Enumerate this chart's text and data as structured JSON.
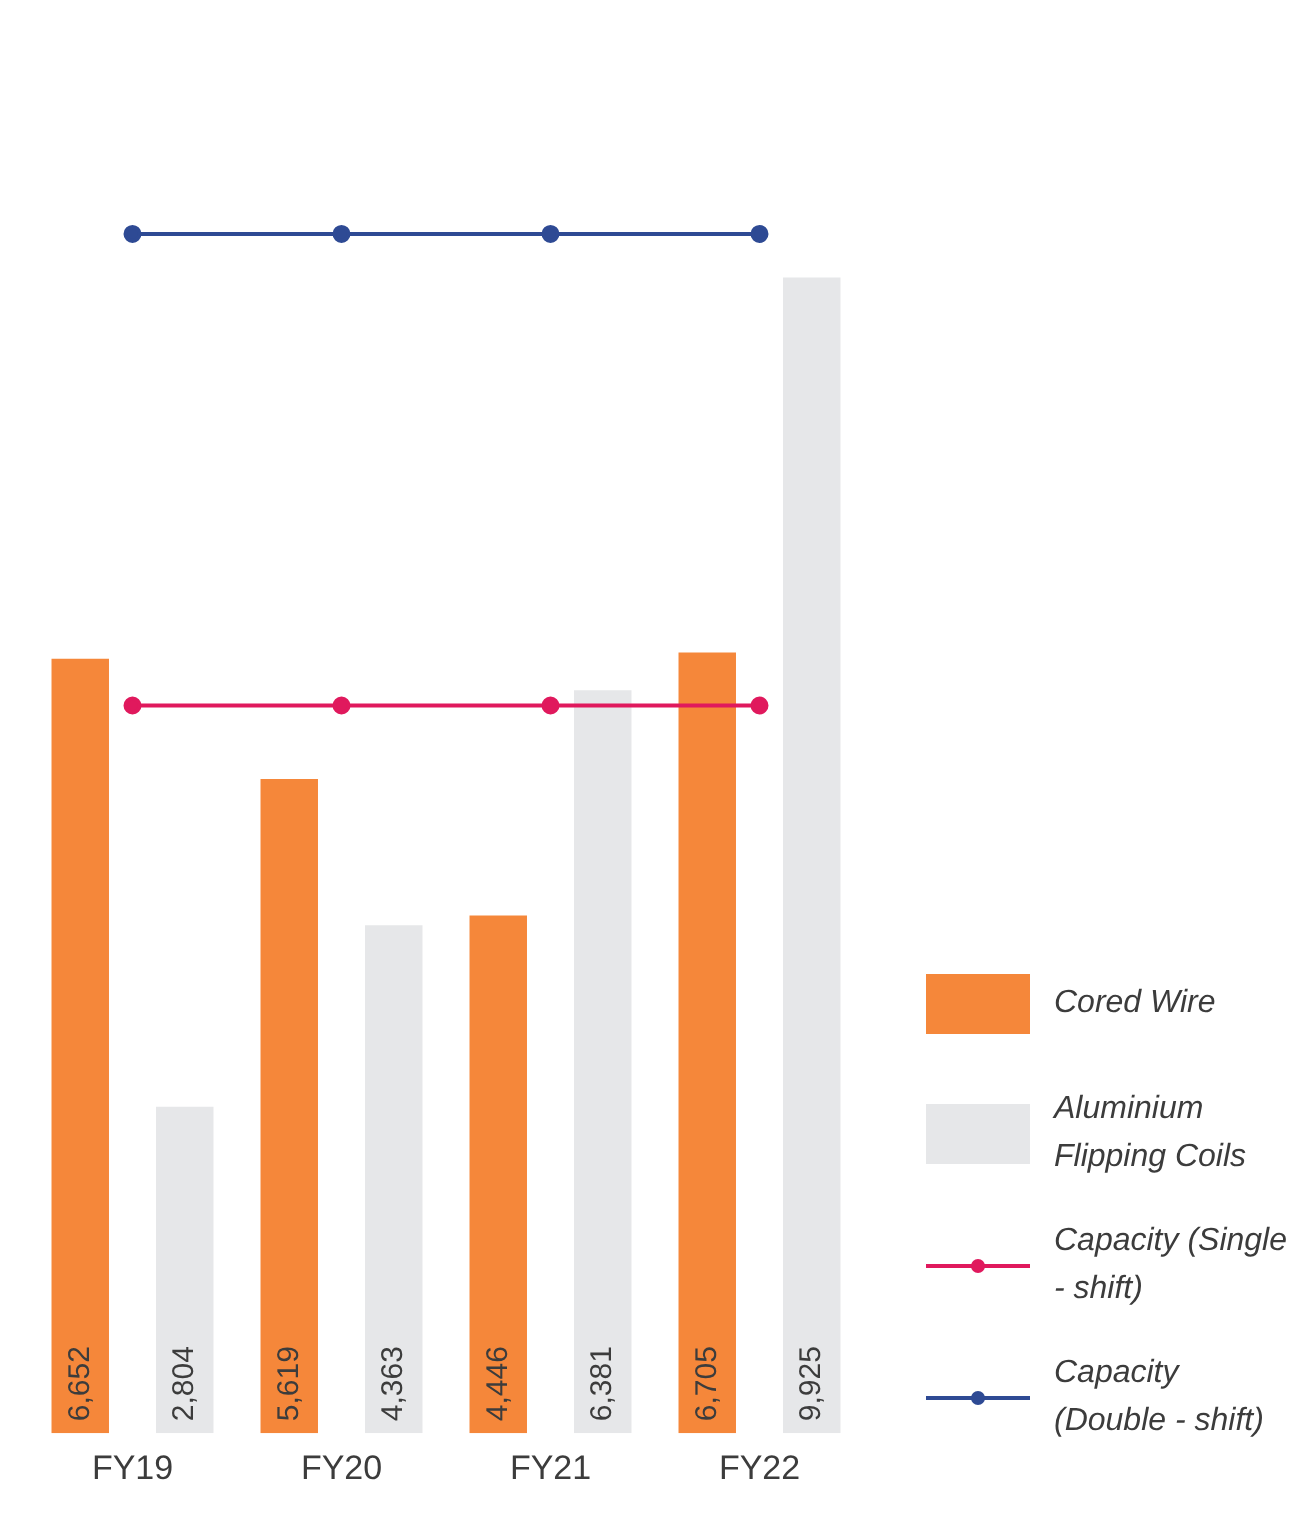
{
  "chart_data": {
    "type": "bar",
    "categories": [
      "FY19",
      "FY20",
      "FY21",
      "FY22"
    ],
    "series": [
      {
        "name": "Cored Wire",
        "color": "#f5873a",
        "values": [
          6652,
          5619,
          4446,
          6705
        ],
        "value_labels": [
          "6,652",
          "5,619",
          "4,446",
          "6,705"
        ]
      },
      {
        "name": "Aluminium Flipping Coils",
        "color": "#e6e7e9",
        "values": [
          2804,
          4363,
          6381,
          9925
        ],
        "value_labels": [
          "2,804",
          "4,363",
          "6,381",
          "9,925"
        ]
      },
      {
        "name": "Capacity (Single - shift)",
        "type": "line",
        "color": "#e0195d",
        "values": [
          6250,
          6250,
          6250,
          6250
        ]
      },
      {
        "name": "Capacity (Double - shift)",
        "type": "line",
        "color": "#2e4a94",
        "values": [
          10300,
          10300,
          10300,
          10300
        ]
      }
    ],
    "marker": "circle",
    "grid": false,
    "legend": "bottom right",
    "tick_labels": "x"
  }
}
